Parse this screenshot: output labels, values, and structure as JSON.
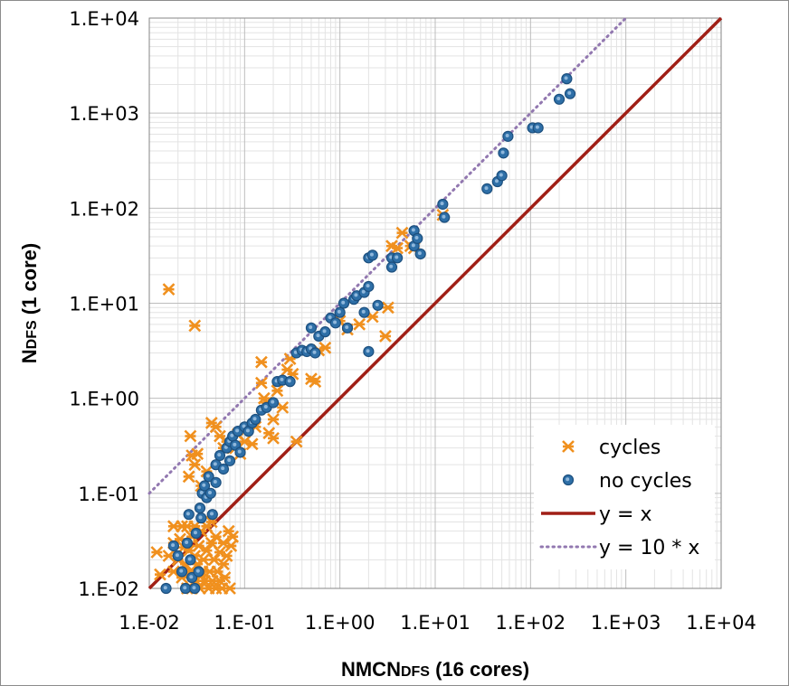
{
  "chart_data": {
    "type": "scatter",
    "title": "",
    "x_scale": "log",
    "y_scale": "log",
    "xlim": [
      0.01,
      10000
    ],
    "ylim": [
      0.01,
      10000
    ],
    "x_ticks": [
      0.01,
      0.1,
      1,
      10,
      100,
      1000,
      10000
    ],
    "y_ticks": [
      0.01,
      0.1,
      1,
      10,
      100,
      1000,
      10000
    ],
    "x_tick_labels": [
      "1.E-02",
      "1.E-01",
      "1.E+00",
      "1.E+01",
      "1.E+02",
      "1.E+03",
      "1.E+04"
    ],
    "y_tick_labels": [
      "1.E-02",
      "1.E-01",
      "1.E+00",
      "1.E+01",
      "1.E+02",
      "1.E+03",
      "1.E+04"
    ],
    "xlabel": {
      "main": "NMCN",
      "sub": "DFS",
      "suffix": " (16 cores)"
    },
    "ylabel": {
      "main": "N",
      "sub": "DFS",
      "suffix": " (1 core)"
    },
    "grid": true,
    "legend_position": "bottom-right",
    "series": [
      {
        "name": "cycles",
        "marker": "asterisk",
        "color": "#F0901E",
        "points": [
          [
            0.016,
            14
          ],
          [
            0.03,
            5.8
          ],
          [
            0.012,
            0.024
          ],
          [
            0.013,
            0.014
          ],
          [
            0.016,
            0.022
          ],
          [
            0.018,
            0.045
          ],
          [
            0.018,
            0.03
          ],
          [
            0.018,
            0.015
          ],
          [
            0.02,
            0.02
          ],
          [
            0.021,
            0.033
          ],
          [
            0.022,
            0.045
          ],
          [
            0.022,
            0.013
          ],
          [
            0.023,
            0.027
          ],
          [
            0.024,
            0.018
          ],
          [
            0.025,
            0.01
          ],
          [
            0.025,
            0.045
          ],
          [
            0.026,
            0.025
          ],
          [
            0.027,
            0.015
          ],
          [
            0.028,
            0.035
          ],
          [
            0.028,
            0.01
          ],
          [
            0.03,
            0.022
          ],
          [
            0.03,
            0.045
          ],
          [
            0.031,
            0.012
          ],
          [
            0.032,
            0.018
          ],
          [
            0.033,
            0.028
          ],
          [
            0.034,
            0.01
          ],
          [
            0.035,
            0.04
          ],
          [
            0.036,
            0.015
          ],
          [
            0.037,
            0.02
          ],
          [
            0.038,
            0.012
          ],
          [
            0.04,
            0.025
          ],
          [
            0.04,
            0.045
          ],
          [
            0.042,
            0.01
          ],
          [
            0.043,
            0.015
          ],
          [
            0.045,
            0.03
          ],
          [
            0.046,
            0.012
          ],
          [
            0.048,
            0.02
          ],
          [
            0.05,
            0.01
          ],
          [
            0.05,
            0.035
          ],
          [
            0.052,
            0.015
          ],
          [
            0.055,
            0.012
          ],
          [
            0.055,
            0.024
          ],
          [
            0.058,
            0.01
          ],
          [
            0.06,
            0.018
          ],
          [
            0.06,
            0.03
          ],
          [
            0.062,
            0.013
          ],
          [
            0.065,
            0.022
          ],
          [
            0.068,
            0.04
          ],
          [
            0.07,
            0.01
          ],
          [
            0.072,
            0.028
          ],
          [
            0.075,
            0.035
          ],
          [
            0.035,
            0.014
          ],
          [
            0.045,
            0.05
          ],
          [
            0.027,
            0.4
          ],
          [
            0.028,
            0.25
          ],
          [
            0.03,
            0.2
          ],
          [
            0.026,
            0.15
          ],
          [
            0.032,
            0.26
          ],
          [
            0.035,
            0.12
          ],
          [
            0.04,
            0.17
          ],
          [
            0.045,
            0.55
          ],
          [
            0.05,
            0.5
          ],
          [
            0.055,
            0.4
          ],
          [
            0.06,
            0.3
          ],
          [
            0.065,
            0.35
          ],
          [
            0.08,
            0.3
          ],
          [
            0.085,
            0.42
          ],
          [
            0.09,
            0.26
          ],
          [
            0.1,
            0.35
          ],
          [
            0.12,
            0.33
          ],
          [
            0.13,
            0.5
          ],
          [
            0.15,
            2.4
          ],
          [
            0.15,
            1.45
          ],
          [
            0.16,
            1.0
          ],
          [
            0.17,
            0.9
          ],
          [
            0.18,
            0.43
          ],
          [
            0.2,
            0.38
          ],
          [
            0.2,
            0.6
          ],
          [
            0.22,
            1.2
          ],
          [
            0.25,
            0.8
          ],
          [
            0.28,
            2.0
          ],
          [
            0.3,
            2.6
          ],
          [
            0.32,
            1.8
          ],
          [
            0.35,
            0.35
          ],
          [
            0.5,
            1.6
          ],
          [
            0.55,
            1.5
          ],
          [
            0.6,
            3.2
          ],
          [
            0.7,
            3.4
          ],
          [
            1.0,
            6.5
          ],
          [
            1.2,
            5.3
          ],
          [
            1.6,
            6.0
          ],
          [
            2.2,
            7.2
          ],
          [
            3.0,
            4.5
          ],
          [
            3.2,
            9.0
          ],
          [
            3.5,
            40
          ],
          [
            4.0,
            38
          ],
          [
            4.5,
            55
          ],
          [
            5.5,
            40
          ],
          [
            6.0,
            38
          ],
          [
            12.0,
            85
          ]
        ]
      },
      {
        "name": "no cycles",
        "marker": "circle",
        "color": "#2E6FA7",
        "points": [
          [
            0.015,
            0.01
          ],
          [
            0.018,
            0.028
          ],
          [
            0.02,
            0.022
          ],
          [
            0.022,
            0.015
          ],
          [
            0.024,
            0.01
          ],
          [
            0.025,
            0.03
          ],
          [
            0.026,
            0.06
          ],
          [
            0.027,
            0.02
          ],
          [
            0.028,
            0.013
          ],
          [
            0.03,
            0.01
          ],
          [
            0.031,
            0.038
          ],
          [
            0.033,
            0.015
          ],
          [
            0.034,
            0.07
          ],
          [
            0.035,
            0.055
          ],
          [
            0.036,
            0.1
          ],
          [
            0.038,
            0.12
          ],
          [
            0.04,
            0.09
          ],
          [
            0.042,
            0.15
          ],
          [
            0.044,
            0.1
          ],
          [
            0.046,
            0.06
          ],
          [
            0.05,
            0.2
          ],
          [
            0.05,
            0.13
          ],
          [
            0.055,
            0.25
          ],
          [
            0.06,
            0.18
          ],
          [
            0.065,
            0.3
          ],
          [
            0.07,
            0.22
          ],
          [
            0.07,
            0.35
          ],
          [
            0.075,
            0.4
          ],
          [
            0.08,
            0.32
          ],
          [
            0.085,
            0.45
          ],
          [
            0.09,
            0.27
          ],
          [
            0.1,
            0.5
          ],
          [
            0.11,
            0.45
          ],
          [
            0.12,
            0.55
          ],
          [
            0.13,
            0.6
          ],
          [
            0.15,
            0.75
          ],
          [
            0.17,
            0.8
          ],
          [
            0.2,
            0.9
          ],
          [
            0.22,
            1.5
          ],
          [
            0.25,
            1.55
          ],
          [
            0.3,
            1.5
          ],
          [
            0.35,
            3.0
          ],
          [
            0.4,
            3.2
          ],
          [
            0.45,
            3.1
          ],
          [
            0.5,
            5.5
          ],
          [
            0.5,
            3.3
          ],
          [
            0.55,
            3.0
          ],
          [
            0.6,
            4.5
          ],
          [
            0.7,
            5.0
          ],
          [
            0.8,
            7.0
          ],
          [
            0.9,
            6.2
          ],
          [
            1.0,
            8.0
          ],
          [
            1.1,
            10
          ],
          [
            1.2,
            5.5
          ],
          [
            1.4,
            11
          ],
          [
            1.5,
            12
          ],
          [
            1.8,
            13
          ],
          [
            1.8,
            8.0
          ],
          [
            2.0,
            30
          ],
          [
            2.0,
            15
          ],
          [
            2.0,
            3.1
          ],
          [
            2.2,
            32
          ],
          [
            2.5,
            9.5
          ],
          [
            3.5,
            30
          ],
          [
            3.5,
            24
          ],
          [
            4.0,
            30
          ],
          [
            6.0,
            58
          ],
          [
            6.0,
            40
          ],
          [
            6.5,
            48
          ],
          [
            7.0,
            33
          ],
          [
            12,
            110
          ],
          [
            12.5,
            80
          ],
          [
            35,
            160
          ],
          [
            45,
            190
          ],
          [
            50,
            220
          ],
          [
            52,
            380
          ],
          [
            58,
            570
          ],
          [
            105,
            700
          ],
          [
            120,
            700
          ],
          [
            200,
            1400
          ],
          [
            240,
            2300
          ],
          [
            260,
            1600
          ]
        ]
      }
    ],
    "lines": [
      {
        "name": "y = x",
        "factor": 1,
        "style": "solid",
        "color": "#A01F16"
      },
      {
        "name": "y = 10 * x",
        "factor": 10,
        "style": "dotted",
        "color": "#9278B0"
      }
    ],
    "legend": [
      {
        "label": "cycles"
      },
      {
        "label": "no cycles"
      },
      {
        "label": "y = x"
      },
      {
        "label": "y = 10 * x"
      }
    ]
  }
}
